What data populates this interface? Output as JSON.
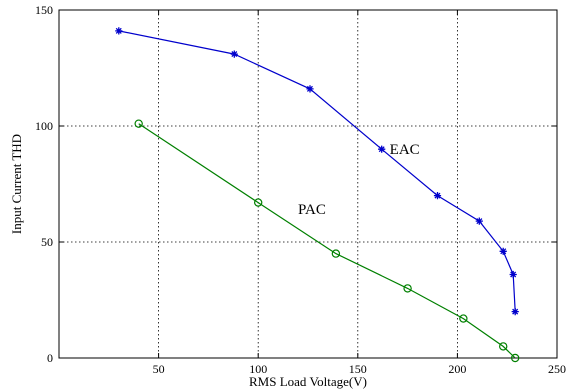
{
  "chart_data": {
    "type": "line",
    "title": "",
    "xlabel": "RMS Load Voltage(V)",
    "ylabel": "Input Current THD",
    "xlim": [
      0,
      250
    ],
    "ylim": [
      0,
      150
    ],
    "x_ticks": [
      50,
      100,
      150,
      200,
      250
    ],
    "y_ticks": [
      0,
      50,
      100,
      150
    ],
    "grid": true,
    "grid_style": "dotted",
    "series": [
      {
        "label": "EAC",
        "color": "#0000cc",
        "marker": "star",
        "x": [
          30,
          88,
          126,
          162,
          190,
          211,
          223,
          228,
          229
        ],
        "y": [
          141,
          131,
          116,
          90,
          70,
          59,
          46,
          36,
          20
        ]
      },
      {
        "label": "PAC",
        "color": "#008000",
        "marker": "circle",
        "x": [
          40,
          100,
          139,
          175,
          203,
          223,
          229
        ],
        "y": [
          101,
          67,
          45,
          30,
          17,
          5,
          0
        ]
      }
    ],
    "annotations": [
      {
        "text": "EAC",
        "x": 166,
        "y": 88
      },
      {
        "text": "PAC",
        "x": 120,
        "y": 62
      }
    ]
  }
}
